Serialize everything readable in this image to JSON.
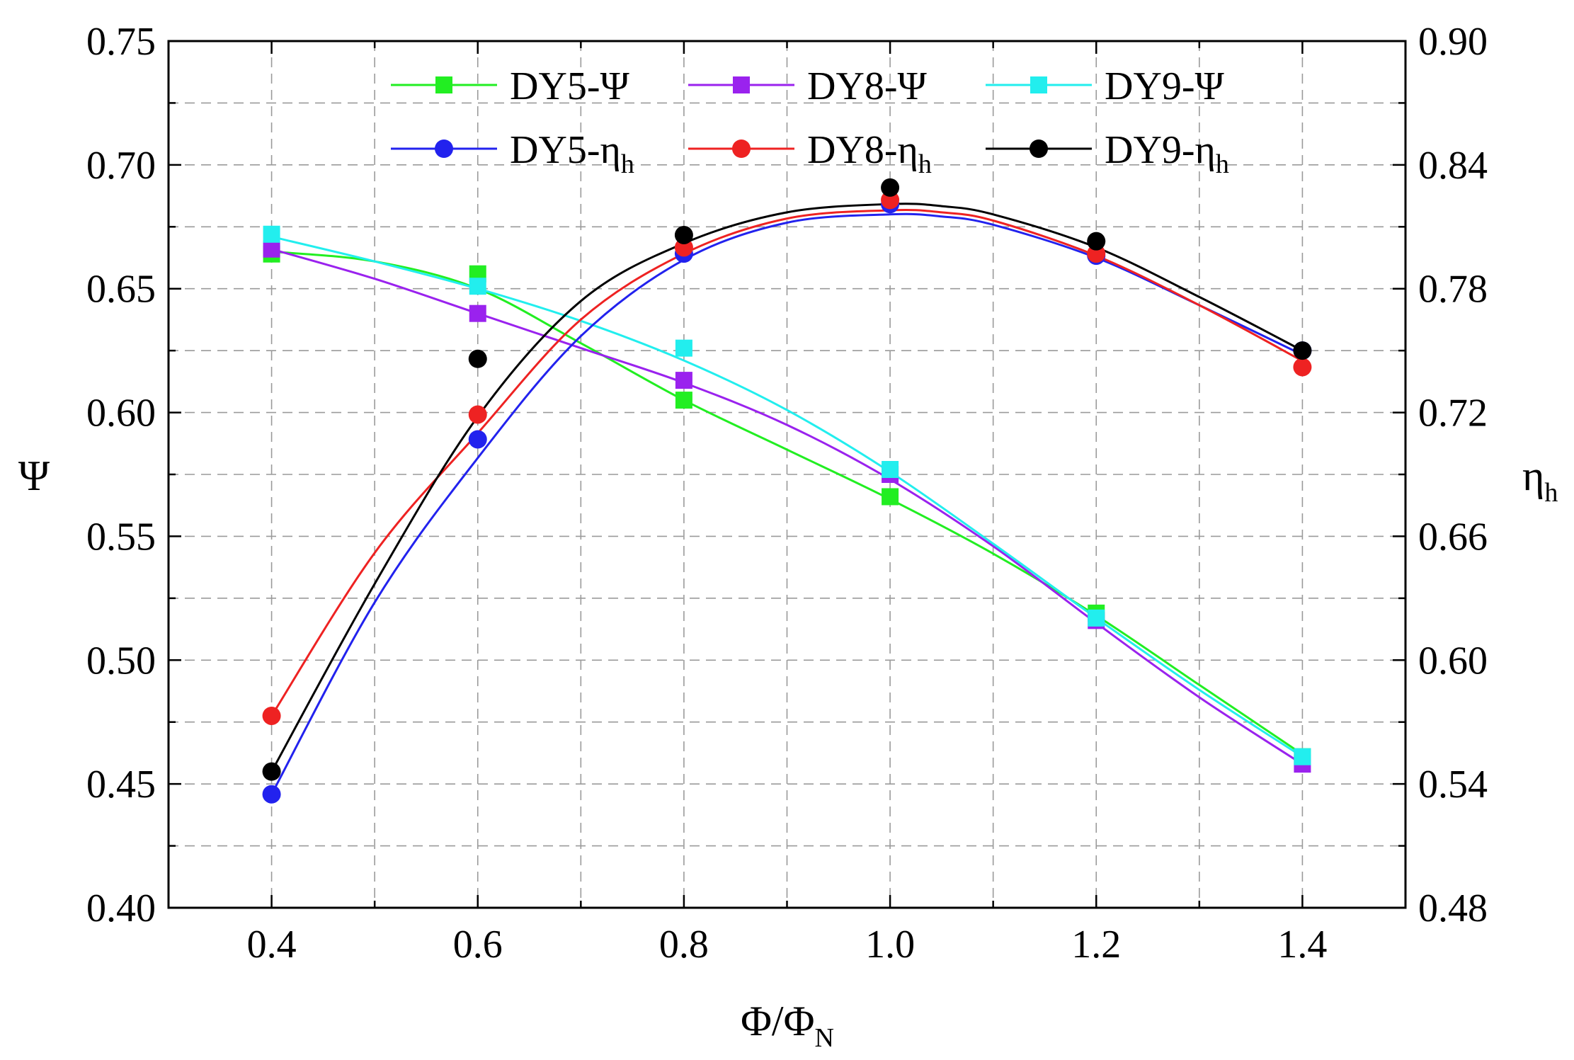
{
  "chart_data": {
    "type": "line",
    "title": "",
    "xlabel": {
      "main": "Φ/Φ",
      "sub": "N"
    },
    "ylabel_left": "Ψ",
    "ylabel_right": {
      "main": "η",
      "sub": "h"
    },
    "xlim": [
      0.3,
      1.5
    ],
    "ylim_left": [
      0.4,
      0.75
    ],
    "ylim_right": [
      0.48,
      0.9
    ],
    "x_ticks": [
      0.4,
      0.6,
      0.8,
      1.0,
      1.2,
      1.4
    ],
    "x_tick_labels": [
      "0.4",
      "0.6",
      "0.8",
      "1.0",
      "1.2",
      "1.4"
    ],
    "y_left_ticks": [
      0.4,
      0.45,
      0.5,
      0.55,
      0.6,
      0.65,
      0.7,
      0.75
    ],
    "y_left_tick_labels": [
      "0.40",
      "0.45",
      "0.50",
      "0.55",
      "0.60",
      "0.65",
      "0.70",
      "0.75"
    ],
    "y_right_ticks": [
      0.48,
      0.54,
      0.6,
      0.66,
      0.72,
      0.78,
      0.84,
      0.9
    ],
    "y_right_tick_labels": [
      "0.48",
      "0.54",
      "0.60",
      "0.66",
      "0.72",
      "0.78",
      "0.84",
      "0.90"
    ],
    "grid": true,
    "legend_position": "top",
    "x": [
      0.4,
      0.6,
      0.8,
      1.0,
      1.2,
      1.4
    ],
    "series": [
      {
        "name": "DY5-Ψ",
        "label_main": "DY5-Ψ",
        "label_sub": "",
        "axis": "left",
        "marker": "square",
        "color": "#22ee22",
        "values": [
          0.664,
          0.656,
          0.605,
          0.566,
          0.519,
          0.461
        ],
        "curve": [
          [
            0.4,
            0.665
          ],
          [
            0.5,
            0.661
          ],
          [
            0.6,
            0.65
          ],
          [
            0.7,
            0.628
          ],
          [
            0.8,
            0.605
          ],
          [
            0.9,
            0.585
          ],
          [
            1.0,
            0.565
          ],
          [
            1.1,
            0.543
          ],
          [
            1.2,
            0.518
          ],
          [
            1.3,
            0.49
          ],
          [
            1.4,
            0.462
          ]
        ]
      },
      {
        "name": "DY8-Ψ",
        "label_main": "DY8-Ψ",
        "label_sub": "",
        "axis": "left",
        "marker": "square",
        "color": "#9a22ee",
        "values": [
          0.666,
          0.64,
          0.613,
          0.575,
          0.516,
          0.458
        ],
        "curve": [
          [
            0.4,
            0.666
          ],
          [
            0.5,
            0.654
          ],
          [
            0.6,
            0.64
          ],
          [
            0.7,
            0.626
          ],
          [
            0.8,
            0.612
          ],
          [
            0.9,
            0.595
          ],
          [
            1.0,
            0.573
          ],
          [
            1.1,
            0.546
          ],
          [
            1.2,
            0.515
          ],
          [
            1.3,
            0.485
          ],
          [
            1.4,
            0.458
          ]
        ]
      },
      {
        "name": "DY9-Ψ",
        "label_main": "DY9-Ψ",
        "label_sub": "",
        "axis": "left",
        "marker": "square",
        "color": "#22eeee",
        "values": [
          0.672,
          0.651,
          0.626,
          0.577,
          0.517,
          0.461
        ],
        "curve": [
          [
            0.4,
            0.671
          ],
          [
            0.5,
            0.661
          ],
          [
            0.6,
            0.65
          ],
          [
            0.7,
            0.637
          ],
          [
            0.8,
            0.621
          ],
          [
            0.9,
            0.601
          ],
          [
            1.0,
            0.576
          ],
          [
            1.1,
            0.547
          ],
          [
            1.2,
            0.517
          ],
          [
            1.3,
            0.488
          ],
          [
            1.4,
            0.461
          ]
        ]
      },
      {
        "name": "DY5-ηh",
        "label_main": "DY5-η",
        "label_sub": "h",
        "axis": "right",
        "marker": "circle",
        "color": "#2222ee",
        "values": [
          0.535,
          0.707,
          0.797,
          0.821,
          0.796,
          0.75
        ],
        "curve": [
          [
            0.4,
            0.535
          ],
          [
            0.5,
            0.628
          ],
          [
            0.6,
            0.698
          ],
          [
            0.7,
            0.757
          ],
          [
            0.8,
            0.794
          ],
          [
            0.9,
            0.812
          ],
          [
            1.0,
            0.816
          ],
          [
            1.05,
            0.815
          ],
          [
            1.1,
            0.811
          ],
          [
            1.2,
            0.795
          ],
          [
            1.3,
            0.772
          ],
          [
            1.4,
            0.748
          ]
        ]
      },
      {
        "name": "DY8-ηh",
        "label_main": "DY8-η",
        "label_sub": "h",
        "axis": "right",
        "marker": "circle",
        "color": "#ee2222",
        "values": [
          0.573,
          0.719,
          0.8,
          0.823,
          0.797,
          0.742
        ],
        "curve": [
          [
            0.4,
            0.573
          ],
          [
            0.5,
            0.652
          ],
          [
            0.6,
            0.71
          ],
          [
            0.7,
            0.765
          ],
          [
            0.8,
            0.797
          ],
          [
            0.9,
            0.814
          ],
          [
            1.0,
            0.818
          ],
          [
            1.05,
            0.817
          ],
          [
            1.1,
            0.813
          ],
          [
            1.2,
            0.796
          ],
          [
            1.3,
            0.772
          ],
          [
            1.4,
            0.745
          ]
        ]
      },
      {
        "name": "DY9-ηh",
        "label_main": "DY9-η",
        "label_sub": "h",
        "axis": "right",
        "marker": "circle",
        "color": "#000000",
        "values": [
          0.546,
          0.746,
          0.806,
          0.829,
          0.803,
          0.75
        ],
        "curve": [
          [
            0.4,
            0.546
          ],
          [
            0.5,
            0.637
          ],
          [
            0.6,
            0.718
          ],
          [
            0.7,
            0.774
          ],
          [
            0.8,
            0.802
          ],
          [
            0.9,
            0.817
          ],
          [
            1.0,
            0.821
          ],
          [
            1.05,
            0.82
          ],
          [
            1.1,
            0.816
          ],
          [
            1.2,
            0.8
          ],
          [
            1.3,
            0.776
          ],
          [
            1.4,
            0.75
          ]
        ]
      }
    ]
  }
}
